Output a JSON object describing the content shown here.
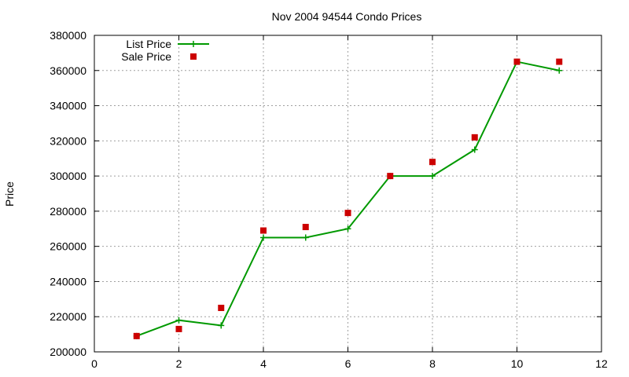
{
  "chart_data": {
    "type": "line",
    "title": "Nov 2004 94544 Condo Prices",
    "xlabel": "",
    "ylabel": "Price",
    "xlim": [
      0,
      12
    ],
    "ylim": [
      200000,
      380000
    ],
    "xticks": [
      0,
      2,
      4,
      6,
      8,
      10,
      12
    ],
    "yticks": [
      200000,
      220000,
      240000,
      260000,
      280000,
      300000,
      320000,
      340000,
      360000,
      380000
    ],
    "grid": true,
    "legend_position": "top-left",
    "series": [
      {
        "name": "List Price",
        "style": "line-points",
        "color": "#009900",
        "marker": "plus",
        "x": [
          1,
          2,
          3,
          4,
          5,
          6,
          7,
          8,
          9,
          10,
          11
        ],
        "y": [
          209000,
          218000,
          215000,
          265000,
          265000,
          270000,
          300000,
          300000,
          315000,
          365000,
          360000
        ]
      },
      {
        "name": "Sale Price",
        "style": "points",
        "color": "#cc0000",
        "marker": "square",
        "x": [
          1,
          2,
          3,
          4,
          5,
          6,
          7,
          8,
          9,
          10,
          11
        ],
        "y": [
          209000,
          213000,
          225000,
          269000,
          271000,
          279000,
          300000,
          308000,
          322000,
          365000,
          365000
        ]
      }
    ]
  }
}
